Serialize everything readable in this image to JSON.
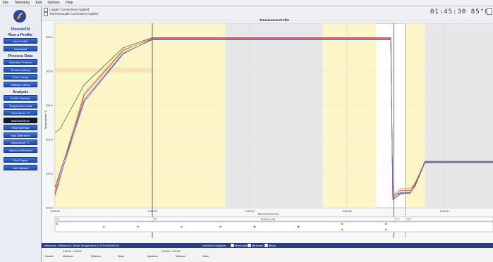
{
  "menu": [
    "File",
    "Telemetry",
    "Edit",
    "Options",
    "Help"
  ],
  "brand": "PhoenixTM",
  "sidebar": {
    "run_title": "Run a Profile",
    "run_buttons": [
      "New Profile",
      "Download"
    ],
    "process_title": "Process Data",
    "process_buttons": [
      "Standard Process",
      "Product Library",
      "Oven Library",
      "Settings Library"
    ],
    "analysis_title": "Analysis",
    "analysis_buttons": [
      "Profile Features",
      "Temperature Data",
      "Time Above °C",
      "Max/Min/Mean",
      "Rise/Fall Rate",
      "Max Difference",
      "Area Above °C",
      "Values at Selected"
    ],
    "report_buttons": [
      "Print Report",
      "User Manual"
    ]
  },
  "checkboxes": [
    "Logger Connections Applied",
    "Thermocouple Corrections Applied"
  ],
  "clock": {
    "time": "01:45:30",
    "temp": "85°C"
  },
  "chart_title": "Temperature Profile",
  "chart_data": {
    "type": "line",
    "title": "Temperature Profile",
    "xlabel": "Time (mm:hh:ss)",
    "ylabel": "Temperature °C",
    "xlabel2": "Distance (m)",
    "x_ticks": [
      "0:00:00",
      "1:00:00",
      "2:00:00",
      "3:00:00",
      "4:00:00"
    ],
    "x2_ticks": [
      "0.0",
      "5.0",
      "17.0",
      "18.0"
    ],
    "y_ticks": [
      "100.0",
      "150.0",
      "200.0",
      "250.0",
      "300.0",
      "350.0"
    ],
    "zones_yellow": [
      [
        0,
        1.0
      ],
      [
        1.0,
        1.75
      ],
      [
        2.75,
        3.3
      ],
      [
        3.6,
        3.8
      ]
    ],
    "zones_grey": [
      [
        1.75,
        2.75
      ],
      [
        3.8,
        4.5
      ]
    ],
    "series": [
      {
        "color": "#d94040",
        "values": [
          [
            0,
            118
          ],
          [
            0.3,
            265
          ],
          [
            0.7,
            330
          ],
          [
            1.0,
            348
          ],
          [
            3.45,
            348
          ],
          [
            3.47,
            115
          ],
          [
            3.55,
            125
          ],
          [
            3.65,
            125
          ],
          [
            3.7,
            135
          ],
          [
            3.8,
            168
          ],
          [
            4.5,
            168
          ]
        ]
      },
      {
        "color": "#e09a30",
        "values": [
          [
            0,
            125
          ],
          [
            0.3,
            268
          ],
          [
            0.7,
            331
          ],
          [
            1.0,
            347
          ],
          [
            3.45,
            347
          ],
          [
            3.47,
            118
          ],
          [
            3.55,
            128
          ],
          [
            3.65,
            128
          ],
          [
            3.7,
            137
          ],
          [
            3.8,
            167
          ],
          [
            4.5,
            167
          ]
        ]
      },
      {
        "color": "#3a7a3a",
        "values": [
          [
            0,
            210
          ],
          [
            0.05,
            215
          ],
          [
            0.3,
            280
          ],
          [
            0.7,
            334
          ],
          [
            1.0,
            349
          ],
          [
            3.45,
            349
          ],
          [
            3.47,
            118
          ],
          [
            3.55,
            122
          ],
          [
            3.65,
            122
          ],
          [
            3.7,
            133
          ],
          [
            3.8,
            167
          ],
          [
            4.5,
            167
          ]
        ]
      },
      {
        "color": "#3a50b0",
        "values": [
          [
            0,
            130
          ],
          [
            0.3,
            258
          ],
          [
            0.7,
            326
          ],
          [
            1.0,
            346
          ],
          [
            3.45,
            346
          ],
          [
            3.47,
            112
          ],
          [
            3.55,
            120
          ],
          [
            3.65,
            122
          ],
          [
            3.7,
            132
          ],
          [
            3.8,
            166
          ],
          [
            4.5,
            166
          ]
        ]
      },
      {
        "color": "#9a60b0",
        "values": [
          [
            0,
            122
          ],
          [
            0.3,
            255
          ],
          [
            0.7,
            325
          ],
          [
            1.0,
            347
          ],
          [
            3.45,
            347
          ],
          [
            3.47,
            113
          ],
          [
            3.55,
            121
          ],
          [
            3.65,
            121
          ],
          [
            3.7,
            134
          ],
          [
            3.8,
            168
          ],
          [
            4.5,
            168
          ]
        ]
      }
    ],
    "xlim": [
      0,
      4.5
    ],
    "ylim": [
      100,
      370
    ]
  },
  "bottom": {
    "title": "Maximum / Minimum / Mean Temperature (TC/CHANNELS)",
    "options": [
      "Maximum",
      "Minimum",
      "Mean"
    ],
    "options_label": "Include in Analysis:",
    "groups": [
      "0:00:00 - 4:30:00",
      "4:30:00 - 4:44:30"
    ],
    "columns": [
      "Channel",
      "Maximum",
      "Minimum",
      "Mean",
      "Maximum",
      "Minimum",
      "Mean"
    ]
  }
}
